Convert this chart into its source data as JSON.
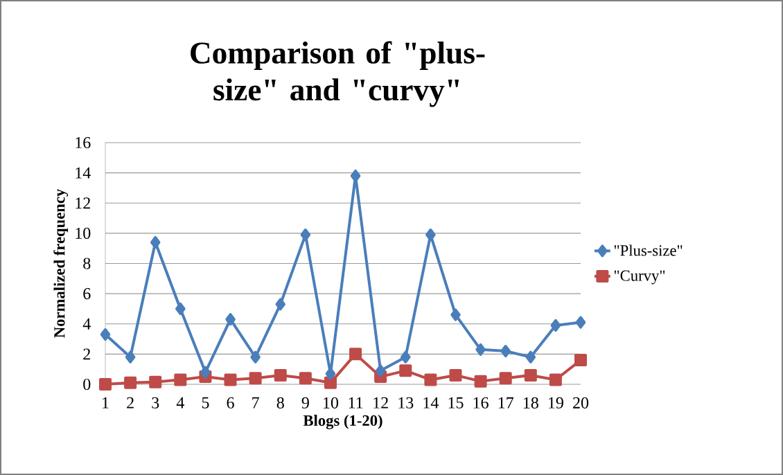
{
  "chart_data": {
    "type": "line",
    "title": "Comparison of \"plus-size\" and \"curvy\"",
    "xlabel": "Blogs (1-20)",
    "ylabel": "Normalized frequency",
    "categories": [
      "1",
      "2",
      "3",
      "4",
      "5",
      "6",
      "7",
      "8",
      "9",
      "10",
      "11",
      "12",
      "13",
      "14",
      "15",
      "16",
      "17",
      "18",
      "19",
      "20"
    ],
    "series": [
      {
        "name": "\"Plus-size\"",
        "color": "#4a7ebb",
        "marker": "diamond",
        "values": [
          3.3,
          1.8,
          9.4,
          5.0,
          0.8,
          4.3,
          1.8,
          5.3,
          9.9,
          0.7,
          13.8,
          0.9,
          1.8,
          9.9,
          4.6,
          2.3,
          2.2,
          1.8,
          3.9,
          4.1
        ]
      },
      {
        "name": "\"Curvy\"",
        "color": "#be4b48",
        "marker": "square",
        "values": [
          0.0,
          0.1,
          0.15,
          0.3,
          0.5,
          0.3,
          0.4,
          0.6,
          0.4,
          0.1,
          2.0,
          0.5,
          0.9,
          0.3,
          0.6,
          0.2,
          0.4,
          0.6,
          0.3,
          1.6
        ]
      }
    ],
    "ylim": [
      0,
      16
    ],
    "yticks": [
      0,
      2,
      4,
      6,
      8,
      10,
      12,
      14,
      16
    ],
    "grid": "y",
    "legend": "right"
  }
}
